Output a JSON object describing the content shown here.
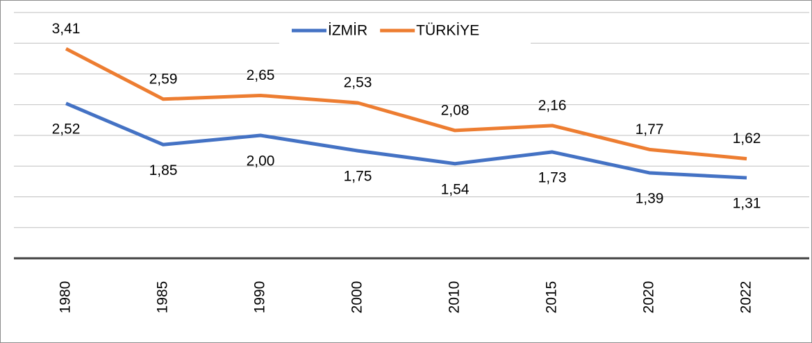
{
  "chart_data": {
    "type": "line",
    "categories": [
      "1980",
      "1985",
      "1990",
      "2000",
      "2010",
      "2015",
      "2020",
      "2022"
    ],
    "series": [
      {
        "name": "İZMİR",
        "color": "#4472c4",
        "values": [
          2.52,
          1.85,
          2.0,
          1.75,
          1.54,
          1.73,
          1.39,
          1.31
        ],
        "value_labels": [
          "2,52",
          "1,85",
          "2,00",
          "1,75",
          "1,54",
          "1,73",
          "1,39",
          "1,31"
        ]
      },
      {
        "name": "TÜRKİYE",
        "color": "#ed7d31",
        "values": [
          3.41,
          2.59,
          2.65,
          2.53,
          2.08,
          2.16,
          1.77,
          1.62
        ],
        "value_labels": [
          "3,41",
          "2,59",
          "2,65",
          "2,53",
          "2,08",
          "2,16",
          "1,77",
          "1,62"
        ]
      }
    ],
    "ylim": [
      0,
      4
    ],
    "yticks": [
      0.5,
      1,
      1.5,
      2,
      2.5,
      3,
      3.5,
      4
    ],
    "grid": true,
    "legend": "top"
  }
}
